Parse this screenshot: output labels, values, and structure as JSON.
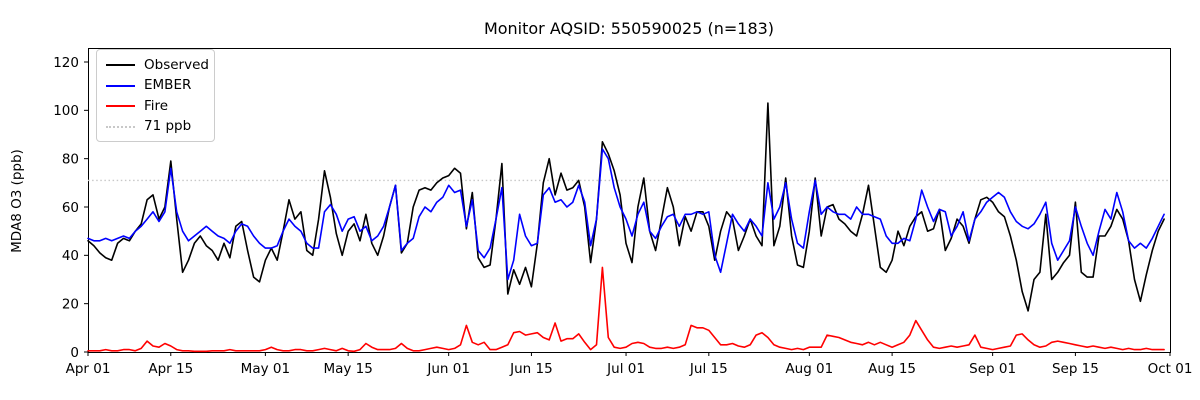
{
  "title": "Monitor AQSID: 550590025 (n=183)",
  "legend": {
    "items": [
      {
        "label": "Observed",
        "color": "#000000",
        "style": "solid"
      },
      {
        "label": "EMBER",
        "color": "#0000ff",
        "style": "solid"
      },
      {
        "label": "Fire",
        "color": "#ff0000",
        "style": "solid"
      },
      {
        "label": "71 ppb",
        "color": "#c8c8c8",
        "style": "dotted"
      }
    ]
  },
  "axes": {
    "ylabel": "MDA8 O3 (ppb)",
    "yticks": [
      0,
      20,
      40,
      60,
      80,
      100,
      120
    ],
    "ylim": [
      0,
      125.8
    ],
    "xtick_labels": [
      "Apr 01",
      "Apr 15",
      "May 01",
      "May 15",
      "Jun 01",
      "Jun 15",
      "Jul 01",
      "Jul 15",
      "Aug 01",
      "Aug 15",
      "Sep 01",
      "Sep 15",
      "Oct 01"
    ],
    "xtick_days": [
      0,
      14,
      30,
      44,
      61,
      75,
      91,
      105,
      122,
      136,
      153,
      167,
      183
    ],
    "xlim_days": [
      0,
      183
    ]
  },
  "chart_data": {
    "type": "line",
    "title": "Monitor AQSID: 550590025 (n=183)",
    "xlabel": "",
    "ylabel": "MDA8 O3 (ppb)",
    "x_unit": "days since Apr 01 (daily values, Apr 01 - Sep 30, n=183)",
    "ylim": [
      0,
      125.8
    ],
    "grid": false,
    "legend_position": "upper left",
    "threshold": {
      "label": "71 ppb",
      "value": 71,
      "color": "#c8c8c8",
      "style": "dotted"
    },
    "series": [
      {
        "name": "Observed",
        "color": "#000000",
        "values": [
          46,
          44,
          41,
          39,
          38,
          45,
          47,
          46,
          50,
          53,
          63,
          65,
          55,
          60,
          79,
          55,
          33,
          38,
          45,
          48,
          44,
          42,
          38,
          45,
          39,
          52,
          54,
          42,
          31,
          29,
          38,
          43,
          38,
          50,
          63,
          55,
          58,
          42,
          40,
          55,
          75,
          64,
          49,
          40,
          50,
          53,
          46,
          57,
          45,
          40,
          48,
          60,
          69,
          41,
          45,
          60,
          67,
          68,
          67,
          70,
          72,
          73,
          76,
          74,
          51,
          66,
          39,
          35,
          36,
          55,
          78,
          24,
          34,
          28,
          35,
          27,
          45,
          70,
          80,
          65,
          74,
          67,
          68,
          71,
          60,
          37,
          55,
          87,
          82,
          75,
          65,
          45,
          37,
          60,
          72,
          50,
          42,
          55,
          68,
          60,
          44,
          56,
          50,
          58,
          58,
          52,
          38,
          50,
          58,
          55,
          42,
          48,
          55,
          48,
          44,
          103,
          44,
          52,
          72,
          48,
          36,
          35,
          50,
          72,
          48,
          60,
          61,
          55,
          53,
          50,
          48,
          57,
          69,
          52,
          35,
          33,
          38,
          50,
          44,
          52,
          56,
          58,
          50,
          51,
          59,
          42,
          47,
          55,
          52,
          45,
          55,
          63,
          64,
          62,
          58,
          56,
          48,
          38,
          25,
          17,
          30,
          33,
          57,
          30,
          33,
          37,
          40,
          62,
          33,
          31,
          31,
          48,
          48,
          52,
          59,
          55,
          46,
          30,
          21,
          32,
          42,
          50,
          55
        ]
      },
      {
        "name": "EMBER",
        "color": "#0000ff",
        "values": [
          47,
          46,
          46,
          47,
          46,
          47,
          48,
          47,
          50,
          52,
          55,
          58,
          54,
          58,
          76,
          58,
          50,
          46,
          48,
          50,
          52,
          50,
          48,
          47,
          45,
          50,
          53,
          52,
          48,
          45,
          43,
          43,
          44,
          50,
          55,
          52,
          50,
          45,
          43,
          43,
          58,
          61,
          57,
          50,
          55,
          56,
          50,
          52,
          46,
          48,
          52,
          60,
          69,
          42,
          45,
          47,
          56,
          60,
          58,
          62,
          64,
          69,
          66,
          67,
          52,
          63,
          42,
          39,
          43,
          55,
          68,
          30,
          38,
          57,
          48,
          44,
          45,
          65,
          68,
          62,
          63,
          60,
          62,
          69,
          62,
          44,
          55,
          84,
          80,
          68,
          60,
          55,
          48,
          57,
          62,
          50,
          47,
          52,
          56,
          57,
          52,
          57,
          57,
          58,
          57,
          58,
          40,
          33,
          45,
          57,
          53,
          50,
          55,
          52,
          48,
          70,
          55,
          60,
          70,
          55,
          45,
          43,
          58,
          71,
          57,
          60,
          58,
          57,
          57,
          55,
          60,
          57,
          57,
          56,
          55,
          48,
          45,
          45,
          47,
          46,
          55,
          67,
          60,
          54,
          59,
          58,
          48,
          52,
          58,
          46,
          55,
          58,
          62,
          64,
          66,
          64,
          58,
          54,
          52,
          51,
          53,
          57,
          62,
          45,
          38,
          42,
          46,
          60,
          52,
          45,
          40,
          50,
          59,
          55,
          66,
          58,
          46,
          43,
          45,
          43,
          47,
          52,
          57
        ]
      },
      {
        "name": "Fire",
        "color": "#ff0000",
        "values": [
          0.5,
          0.5,
          0.5,
          1,
          0.5,
          0.5,
          1,
          1,
          0.5,
          1.5,
          4.5,
          2.5,
          2,
          3.5,
          2.5,
          1,
          0.5,
          0.5,
          0.3,
          0.3,
          0.3,
          0.5,
          0.5,
          0.5,
          1,
          0.5,
          0.5,
          0.5,
          0.5,
          0.5,
          1,
          2,
          1,
          0.5,
          0.5,
          1,
          1,
          0.5,
          0.5,
          1,
          1.5,
          1,
          0.5,
          1.5,
          0.5,
          0.3,
          1,
          3.5,
          2,
          1,
          1,
          1,
          1.5,
          3.5,
          1.5,
          0.5,
          0.5,
          1,
          1.5,
          2,
          1.5,
          1,
          1.5,
          3,
          11,
          4,
          3,
          4,
          1,
          1,
          2,
          3,
          8,
          8.5,
          7,
          7.5,
          8,
          6,
          5,
          12,
          4.5,
          5.5,
          5.5,
          7.5,
          4,
          1,
          3,
          35,
          6,
          2,
          1.5,
          2,
          3.5,
          4,
          3.5,
          2,
          1.5,
          1.5,
          2,
          1.5,
          2,
          3,
          11,
          10,
          10,
          9,
          6,
          3,
          3,
          3.5,
          2.5,
          2,
          3,
          7,
          8,
          6,
          3,
          2,
          1.5,
          1,
          1.5,
          1,
          2,
          2,
          2,
          7,
          6.5,
          6,
          5,
          4,
          3.5,
          3,
          4,
          3,
          4,
          3,
          2,
          3,
          4,
          7,
          13,
          9,
          5,
          2,
          1.5,
          2,
          2.5,
          2,
          2.5,
          3,
          7,
          2,
          1.5,
          1,
          1.5,
          2,
          2.5,
          7,
          7.5,
          5,
          3,
          2,
          2.5,
          4,
          4.5,
          4,
          3.5,
          3,
          2.5,
          2,
          2.5,
          2,
          1.5,
          2,
          1.5,
          1,
          1.5,
          1,
          1,
          1.5,
          1,
          1,
          1
        ]
      }
    ]
  }
}
